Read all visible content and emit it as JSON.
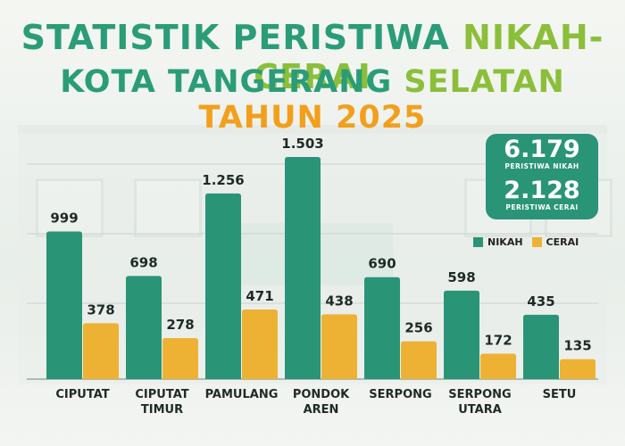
{
  "header": {
    "line1_a": "STATISTIK PERISTIWA",
    "line1_b": "NIKAH-CERAI",
    "line2_a": "KOTA TANGERANG",
    "line2_b": "SELATAN",
    "line2_c": "TAHUN 2025"
  },
  "totals": {
    "nikah_value": "6.179",
    "nikah_label": "PERISTIWA NIKAH",
    "cerai_value": "2.128",
    "cerai_label": "PERISTIWA CERAI"
  },
  "legend": {
    "nikah": "NIKAH",
    "cerai": "CERAI"
  },
  "colors": {
    "nikah": "#2a9477",
    "cerai": "#edb233",
    "title_green": "#2a9d78",
    "title_lime": "#8bbf3a",
    "title_orange": "#f29f1c"
  },
  "chart_data": {
    "type": "bar",
    "categories": [
      [
        "CIPUTAT"
      ],
      [
        "CIPUTAT",
        "TIMUR"
      ],
      [
        "PAMULANG"
      ],
      [
        "PONDOK",
        "AREN"
      ],
      [
        "SERPONG"
      ],
      [
        "SERPONG",
        "UTARA"
      ],
      [
        "SETU"
      ]
    ],
    "series": [
      {
        "name": "NIKAH",
        "values": [
          999,
          698,
          1256,
          1503,
          690,
          598,
          435
        ],
        "labels": [
          "999",
          "698",
          "1.256",
          "1.503",
          "690",
          "598",
          "435"
        ]
      },
      {
        "name": "CERAI",
        "values": [
          378,
          278,
          471,
          438,
          256,
          172,
          135
        ],
        "labels": [
          "378",
          "278",
          "471",
          "438",
          "256",
          "172",
          "135"
        ]
      }
    ],
    "ylim": [
      0,
      1600
    ],
    "grid": true,
    "legend_position": "right"
  }
}
